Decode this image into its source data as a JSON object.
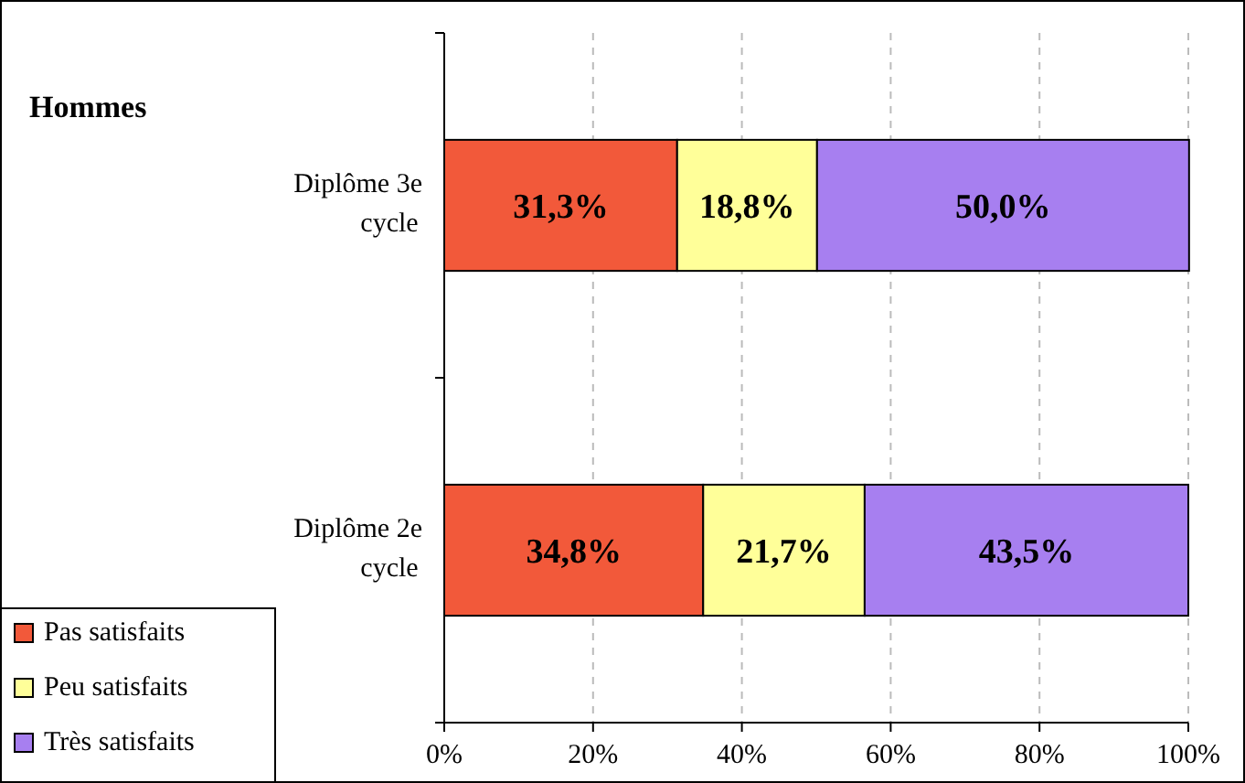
{
  "chart_data": {
    "type": "bar",
    "orientation": "horizontal",
    "stacked": true,
    "title": "Hommes",
    "categories": [
      "Diplôme 3e cycle",
      "Diplôme 2e cycle"
    ],
    "series": [
      {
        "name": "Pas satisfaits",
        "color": "#f2593a",
        "values": [
          31.3,
          34.8
        ],
        "value_labels": [
          "31,3%",
          "34,8%"
        ]
      },
      {
        "name": "Peu satisfaits",
        "color": "#ffff99",
        "values": [
          18.8,
          21.7
        ],
        "value_labels": [
          "18,8%",
          "21,7%"
        ]
      },
      {
        "name": "Très satisfaits",
        "color": "#a77ff0",
        "values": [
          50.0,
          43.5
        ],
        "value_labels": [
          "50,0%",
          "43,5%"
        ]
      }
    ],
    "xlim": [
      0,
      100
    ],
    "xticks": [
      {
        "value": 0,
        "label": "0%"
      },
      {
        "value": 20,
        "label": "20%"
      },
      {
        "value": 40,
        "label": "40%"
      },
      {
        "value": 60,
        "label": "60%"
      },
      {
        "value": 80,
        "label": "80%"
      },
      {
        "value": 100,
        "label": "100%"
      }
    ],
    "grid": "x",
    "legend": "bottom left"
  }
}
